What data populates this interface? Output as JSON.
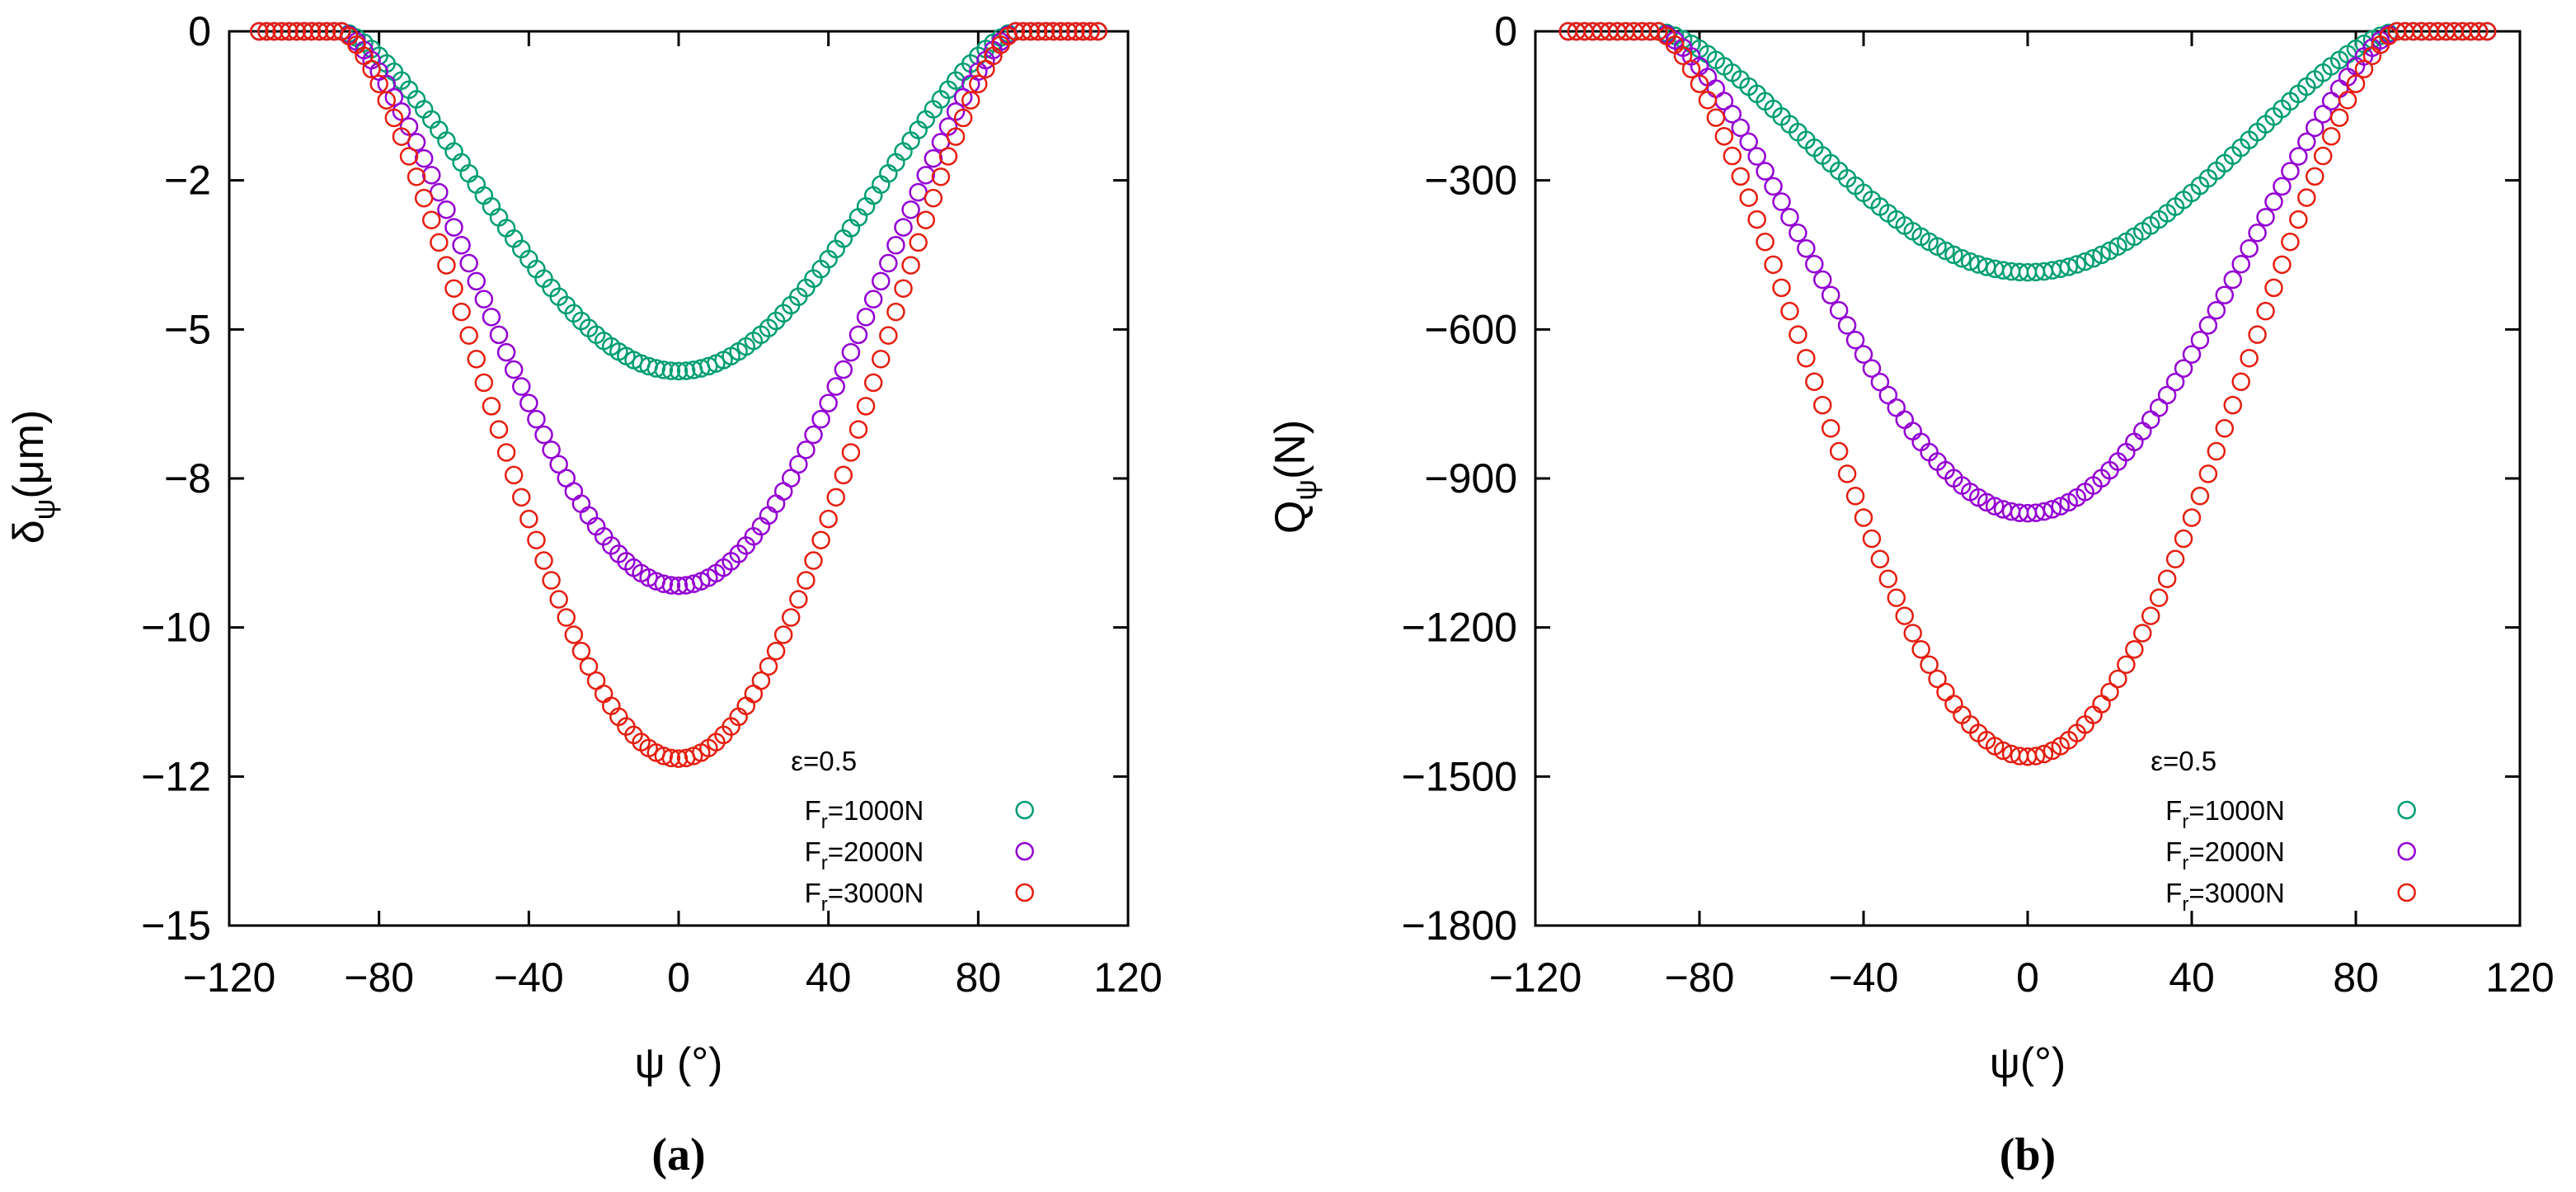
{
  "chart_data": [
    {
      "type": "scatter",
      "panel_label": "(a)",
      "xlabel": "ψ (°)",
      "ylabel": {
        "main": "δ",
        "sub": "ψ",
        "unit": "(μm)"
      },
      "xlim": [
        -120,
        120
      ],
      "ylim": [
        -15,
        0
      ],
      "xticks": [
        "−120",
        "−80",
        "−40",
        "0",
        "40",
        "80",
        "120"
      ],
      "xtick_values": [
        -120,
        -80,
        -40,
        0,
        40,
        80,
        120
      ],
      "yticks": [
        "0",
        "−2",
        "−5",
        "−8",
        "−10",
        "−12",
        "−15"
      ],
      "ytick_values": [
        0,
        -2.5,
        -5,
        -7.5,
        -10,
        -12.5,
        -15
      ],
      "x_range": [
        -112,
        112
      ],
      "x_step": 2,
      "zero_beyond_deg": 90,
      "legend_title": "ε=0.5",
      "legend_position": "bottom-right",
      "series": [
        {
          "name": "Fr=1000N",
          "label_main": "F",
          "label_sub": "r",
          "label_rest": "=1000N",
          "color": "#009e73",
          "min_value": -5.7
        },
        {
          "name": "Fr=2000N",
          "label_main": "F",
          "label_sub": "r",
          "label_rest": "=2000N",
          "color": "#9400d3",
          "min_value": -9.3
        },
        {
          "name": "Fr=3000N",
          "label_main": "F",
          "label_sub": "r",
          "label_rest": "=3000N",
          "color": "#e51e10",
          "min_value": -12.2
        }
      ]
    },
    {
      "type": "scatter",
      "panel_label": "(b)",
      "xlabel": "ψ(°)",
      "ylabel": {
        "main": "Q",
        "sub": "ψ",
        "unit": "(N)"
      },
      "xlim": [
        -120,
        120
      ],
      "ylim": [
        -1800,
        0
      ],
      "xticks": [
        "−120",
        "−80",
        "−40",
        "0",
        "40",
        "80",
        "120"
      ],
      "xtick_values": [
        -120,
        -80,
        -40,
        0,
        40,
        80,
        120
      ],
      "yticks": [
        "0",
        "−300",
        "−600",
        "−900",
        "−1200",
        "−1500",
        "−1800"
      ],
      "ytick_values": [
        0,
        -300,
        -600,
        -900,
        -1200,
        -1500,
        -1800
      ],
      "x_range": [
        -112,
        112
      ],
      "x_step": 2,
      "zero_beyond_deg": 90,
      "legend_title": "ε=0.5",
      "legend_position": "bottom-right",
      "series": [
        {
          "name": "Fr=1000N",
          "label_main": "F",
          "label_sub": "r",
          "label_rest": "=1000N",
          "color": "#009e73",
          "min_value": -485
        },
        {
          "name": "Fr=2000N",
          "label_main": "F",
          "label_sub": "r",
          "label_rest": "=2000N",
          "color": "#9400d3",
          "min_value": -970
        },
        {
          "name": "Fr=3000N",
          "label_main": "F",
          "label_sub": "r",
          "label_rest": "=3000N",
          "color": "#e51e10",
          "min_value": -1460
        }
      ]
    }
  ]
}
